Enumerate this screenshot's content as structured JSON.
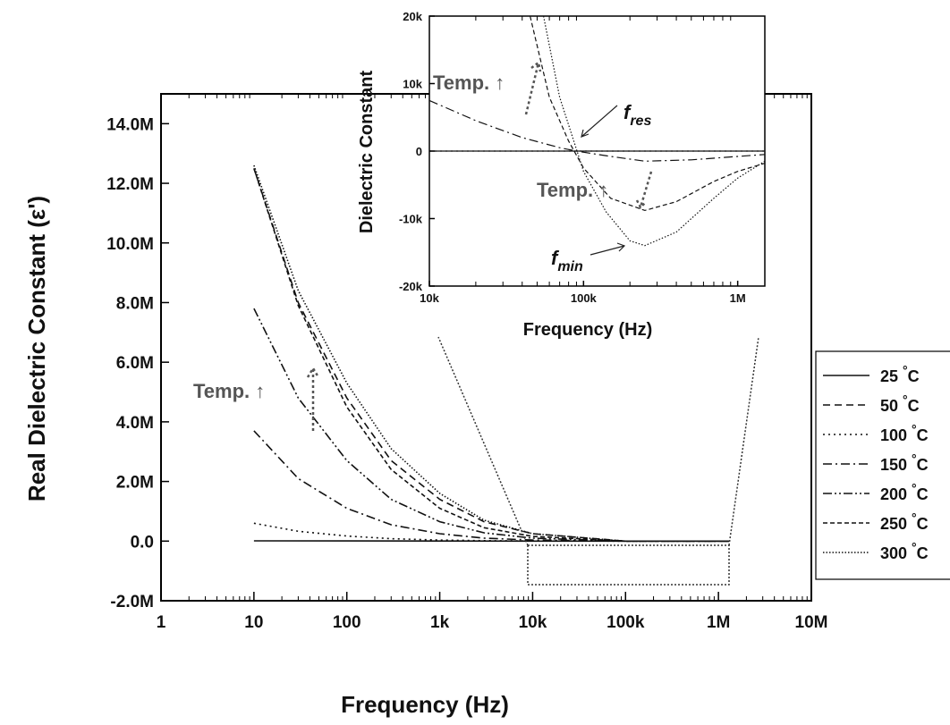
{
  "chart_data": [
    {
      "type": "line",
      "xlabel": "Frequency (Hz)",
      "ylabel": "Real Dielectric Constant (ε')",
      "xscale": "log",
      "xlim": [
        1,
        10000000
      ],
      "ylim": [
        -2000000,
        15000000
      ],
      "x_ticks": [
        {
          "v": 1,
          "label": "1"
        },
        {
          "v": 10,
          "label": "10"
        },
        {
          "v": 100,
          "label": "100"
        },
        {
          "v": 1000,
          "label": "1k"
        },
        {
          "v": 10000,
          "label": "10k"
        },
        {
          "v": 100000,
          "label": "100k"
        },
        {
          "v": 1000000,
          "label": "1M"
        },
        {
          "v": 10000000,
          "label": "10M"
        }
      ],
      "y_ticks": [
        {
          "v": -2000000,
          "label": "-2.0M"
        },
        {
          "v": 0,
          "label": "0.0"
        },
        {
          "v": 2000000,
          "label": "2.0M"
        },
        {
          "v": 4000000,
          "label": "4.0M"
        },
        {
          "v": 6000000,
          "label": "6.0M"
        },
        {
          "v": 8000000,
          "label": "8.0M"
        },
        {
          "v": 10000000,
          "label": "10.0M"
        },
        {
          "v": 12000000,
          "label": "12.0M"
        },
        {
          "v": 14000000,
          "label": "14.0M"
        }
      ],
      "annotation": "Temp. ↑",
      "legend_position": "right",
      "series": [
        {
          "name": "25 °C",
          "dash": "solid",
          "x": [
            10,
            100,
            1000,
            10000,
            100000,
            1000000,
            1300000
          ],
          "y": [
            10000,
            5000,
            2000,
            800,
            300,
            100,
            100
          ]
        },
        {
          "name": "50 °C",
          "dash": "dash",
          "x": [
            10,
            30,
            100,
            300,
            1000,
            3000,
            10000,
            100000,
            1300000
          ],
          "y": [
            12500000,
            8000000,
            4800000,
            2700000,
            1400000,
            650000,
            250000,
            0,
            0
          ]
        },
        {
          "name": "100 °C",
          "dash": "dot",
          "x": [
            10,
            30,
            100,
            300,
            1000,
            3000,
            10000,
            100000,
            1300000
          ],
          "y": [
            600000,
            330000,
            170000,
            80000,
            35000,
            15000,
            5000,
            0,
            0
          ]
        },
        {
          "name": "150 °C",
          "dash": "dashdot",
          "x": [
            10,
            30,
            100,
            300,
            1000,
            3000,
            10000,
            100000,
            1300000
          ],
          "y": [
            3700000,
            2100000,
            1100000,
            550000,
            250000,
            100000,
            35000,
            0,
            0
          ]
        },
        {
          "name": "200 °C",
          "dash": "dashdotdot",
          "x": [
            10,
            30,
            100,
            300,
            1000,
            3000,
            10000,
            100000,
            1300000
          ],
          "y": [
            7800000,
            4800000,
            2700000,
            1400000,
            650000,
            280000,
            100000,
            0,
            0
          ]
        },
        {
          "name": "250 °C",
          "dash": "shortdash",
          "x": [
            10,
            30,
            100,
            300,
            1000,
            3000,
            10000,
            100000,
            1300000
          ],
          "y": [
            12500000,
            7900000,
            4500000,
            2400000,
            1100000,
            450000,
            160000,
            0,
            0
          ]
        },
        {
          "name": "300 °C",
          "dash": "shortdot",
          "x": [
            10,
            30,
            100,
            300,
            1000,
            3000,
            10000,
            100000,
            1300000
          ],
          "y": [
            12600000,
            8400000,
            5300000,
            3100000,
            1600000,
            700000,
            250000,
            0,
            0
          ]
        }
      ]
    },
    {
      "type": "line",
      "xlabel": "Frequency (Hz)",
      "ylabel": "Dielectric Constant",
      "xscale": "log",
      "xlim": [
        10000,
        1500000
      ],
      "ylim": [
        -20000,
        20000
      ],
      "x_ticks": [
        {
          "v": 10000,
          "label": "10k"
        },
        {
          "v": 100000,
          "label": "100k"
        },
        {
          "v": 1000000,
          "label": "1M"
        }
      ],
      "y_ticks": [
        {
          "v": -20000,
          "label": "-20k"
        },
        {
          "v": -10000,
          "label": "-10k"
        },
        {
          "v": 0,
          "label": "0"
        },
        {
          "v": 10000,
          "label": "10k"
        },
        {
          "v": 20000,
          "label": "20k"
        }
      ],
      "annotations": [
        "Temp. ↑",
        "Temp. ↑",
        "f_res",
        "f_min"
      ],
      "series": [
        {
          "name": "25 °C",
          "dash": "solid",
          "x": [
            10000,
            100000,
            1500000
          ],
          "y": [
            0,
            0,
            0
          ]
        },
        {
          "name": "100 °C",
          "dash": "dot",
          "x": [
            10000,
            100000,
            1500000
          ],
          "y": [
            0,
            0,
            0
          ]
        },
        {
          "name": "150 °C",
          "dash": "dashdot",
          "x": [
            10000,
            20000,
            40000,
            70000,
            90000,
            150000,
            250000,
            500000,
            1000000,
            1500000
          ],
          "y": [
            7500,
            4500,
            2000,
            500,
            0,
            -800,
            -1500,
            -1300,
            -800,
            -500
          ]
        },
        {
          "name": "250 °C",
          "dash": "shortdash",
          "x": [
            45000,
            60000,
            80000,
            100000,
            150000,
            250000,
            400000,
            700000,
            1000000,
            1500000
          ],
          "y": [
            20000,
            8000,
            1500,
            -2500,
            -7000,
            -8800,
            -7500,
            -4500,
            -3000,
            -1800
          ]
        },
        {
          "name": "300 °C",
          "dash": "shortdot",
          "x": [
            55000,
            70000,
            85000,
            100000,
            140000,
            200000,
            250000,
            400000,
            700000,
            1000000,
            1500000
          ],
          "y": [
            20000,
            8000,
            2000,
            -3000,
            -9000,
            -13300,
            -14000,
            -12000,
            -7000,
            -4000,
            -1500
          ]
        }
      ]
    }
  ],
  "legend": [
    {
      "temp": "25 ",
      "unit": "°C",
      "dash": "solid"
    },
    {
      "temp": "50 ",
      "unit": "°C",
      "dash": "dash"
    },
    {
      "temp": "100 ",
      "unit": "°C",
      "dash": "dot"
    },
    {
      "temp": "150 ",
      "unit": "°C",
      "dash": "dashdot"
    },
    {
      "temp": "200 ",
      "unit": "°C",
      "dash": "dashdotdot"
    },
    {
      "temp": "250 ",
      "unit": "°C",
      "dash": "shortdash"
    },
    {
      "temp": "300 ",
      "unit": "°C",
      "dash": "shortdot"
    }
  ],
  "inset_labels": {
    "temp_upper": "Temp. ↑",
    "temp_lower": "Temp. ↑",
    "f_res": "f",
    "f_res_sub": "res",
    "f_min": "f",
    "f_min_sub": "min"
  },
  "main_annotation": "Temp. ↑"
}
